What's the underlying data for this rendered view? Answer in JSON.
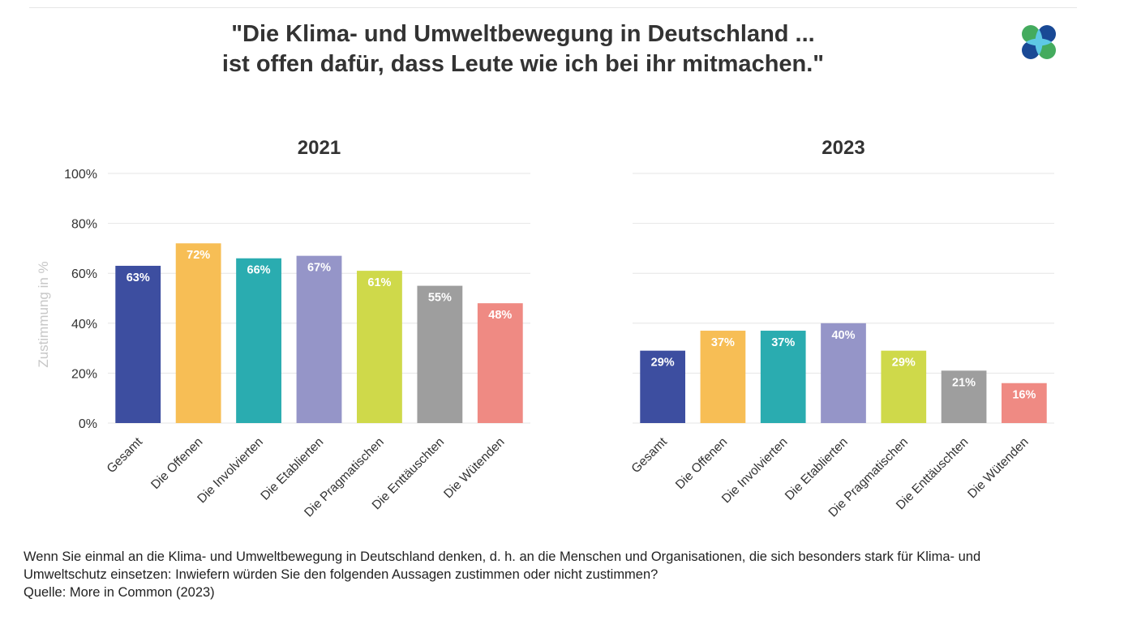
{
  "title": {
    "line1": "\"Die Klima- und Umweltbewegung in Deutschland ...",
    "line2": "ist offen dafür, dass Leute wie ich bei ihr mitmachen.\""
  },
  "logo": {
    "icon": "more-in-common-logo-icon",
    "colors": [
      "#0d3f8f",
      "#1aa3b8",
      "#3aa655",
      "#5ec8e5"
    ]
  },
  "chart_data": [
    {
      "type": "bar",
      "title": "2021",
      "ylabel": "Zustimmung in %",
      "ylim": [
        0,
        100
      ],
      "yticks": [
        "0%",
        "20%",
        "40%",
        "60%",
        "80%",
        "100%"
      ],
      "grid": true,
      "categories": [
        "Gesamt",
        "Die Offenen",
        "Die Involvierten",
        "Die Etablierten",
        "Die Pragmatischen",
        "Die Enttäuschten",
        "Die Wütenden"
      ],
      "values": [
        63,
        72,
        66,
        67,
        61,
        55,
        48
      ],
      "labels": [
        "63%",
        "72%",
        "66%",
        "67%",
        "61%",
        "55%",
        "48%"
      ],
      "colors": [
        "#3d4ea0",
        "#f7be55",
        "#2aacb0",
        "#9595c8",
        "#cfd94a",
        "#9e9e9e",
        "#ef8a83"
      ]
    },
    {
      "type": "bar",
      "title": "2023",
      "ylim": [
        0,
        100
      ],
      "grid": true,
      "categories": [
        "Gesamt",
        "Die Offenen",
        "Die Involvierten",
        "Die Etablierten",
        "Die Pragmatischen",
        "Die Enttäuschten",
        "Die Wütenden"
      ],
      "values": [
        29,
        37,
        37,
        40,
        29,
        21,
        16
      ],
      "labels": [
        "29%",
        "37%",
        "37%",
        "40%",
        "29%",
        "21%",
        "16%"
      ],
      "colors": [
        "#3d4ea0",
        "#f7be55",
        "#2aacb0",
        "#9595c8",
        "#cfd94a",
        "#9e9e9e",
        "#ef8a83"
      ]
    }
  ],
  "footnote": {
    "line1": "Wenn Sie einmal an die Klima- und Umweltbewegung in Deutschland denken, d. h. an die Menschen und Organisationen, die sich besonders stark für Klima- und",
    "line2": "Umweltschutz einsetzen: Inwiefern würden Sie den folgenden Aussagen zustimmen oder nicht zustimmen?",
    "source": "Quelle: More in Common (2023)"
  }
}
